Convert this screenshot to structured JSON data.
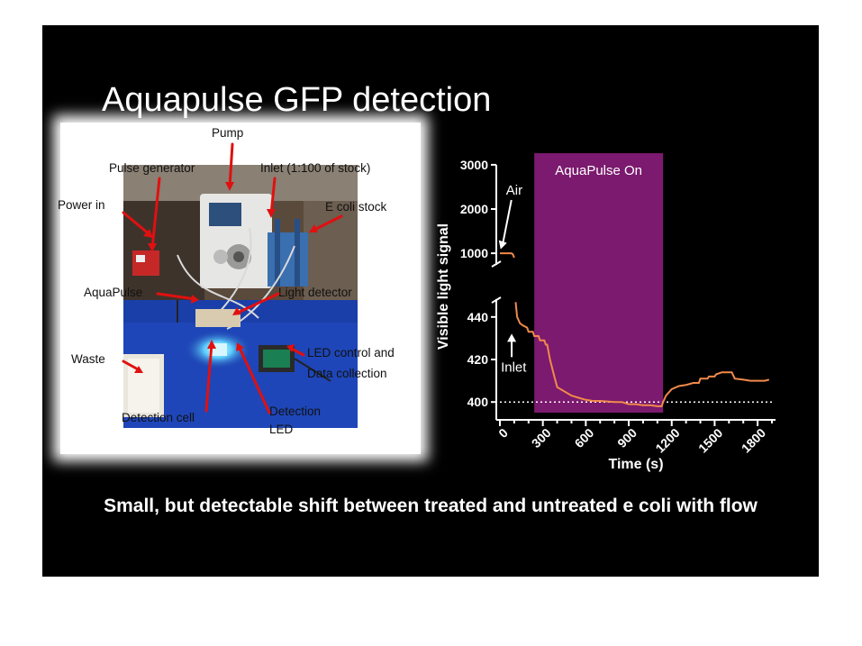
{
  "slide": {
    "title": "Aquapulse GFP detection",
    "caption": "Small, but detectable shift between treated and untreated e coli with flow"
  },
  "photo": {
    "labels": {
      "pump": "Pump",
      "pulse_generator": "Pulse generator",
      "inlet": "Inlet (1:100 of stock)",
      "power_in": "Power in",
      "e_coli_stock": "E coli stock",
      "aquapulse": "AquaPulse",
      "light_detector": "Light detector",
      "waste": "Waste",
      "led_control_1": "LED control and",
      "led_control_2": "Data collection",
      "detection_cell": "Detection cell",
      "detection_led_1": "Detection",
      "detection_led_2": "LED"
    },
    "colors": {
      "arrow": "#e01010",
      "bench": "#1a3fa8",
      "glow": "#5fd0ff"
    }
  },
  "chart_data": {
    "type": "line",
    "xlabel": "Time (s)",
    "ylabel": "Visible light signal",
    "x_ticks": [
      0,
      300,
      600,
      900,
      1200,
      1500,
      1800
    ],
    "xlim": [
      0,
      1900
    ],
    "y_axis_broken": true,
    "y_ticks_upper": [
      1000,
      2000,
      3000
    ],
    "ylim_upper": [
      900,
      3100
    ],
    "y_ticks_lower": [
      400,
      420,
      440
    ],
    "ylim_lower": [
      395,
      445
    ],
    "baseline": 400,
    "shaded_region": {
      "label": "AquaPulse On",
      "x_start": 240,
      "x_end": 1140,
      "color": "#7b1a6e"
    },
    "annotations": [
      {
        "text": "Air",
        "x": 30,
        "y": 1050
      },
      {
        "text": "Inlet",
        "x": 120,
        "y": 433
      }
    ],
    "series": [
      {
        "color": "#f08a4b",
        "upper_points": [
          [
            0,
            1000
          ],
          [
            80,
            1000
          ],
          [
            90,
            980
          ],
          [
            100,
            900
          ]
        ],
        "lower_points": [
          [
            110,
            447
          ],
          [
            120,
            440
          ],
          [
            140,
            437
          ],
          [
            160,
            436
          ],
          [
            190,
            435
          ],
          [
            200,
            433
          ],
          [
            230,
            433
          ],
          [
            240,
            431
          ],
          [
            270,
            431
          ],
          [
            280,
            429
          ],
          [
            310,
            429
          ],
          [
            320,
            427
          ],
          [
            330,
            427
          ],
          [
            350,
            420
          ],
          [
            380,
            412
          ],
          [
            400,
            407
          ],
          [
            450,
            405
          ],
          [
            500,
            403
          ],
          [
            550,
            402
          ],
          [
            600,
            401
          ],
          [
            650,
            400.5
          ],
          [
            700,
            400.5
          ],
          [
            800,
            400
          ],
          [
            850,
            400
          ],
          [
            900,
            399
          ],
          [
            950,
            399
          ],
          [
            1000,
            398.5
          ],
          [
            1050,
            398.5
          ],
          [
            1100,
            398
          ],
          [
            1130,
            398
          ],
          [
            1140,
            400
          ],
          [
            1160,
            403
          ],
          [
            1200,
            406
          ],
          [
            1250,
            407.5
          ],
          [
            1300,
            408
          ],
          [
            1350,
            409
          ],
          [
            1390,
            409
          ],
          [
            1400,
            411
          ],
          [
            1450,
            411
          ],
          [
            1460,
            412
          ],
          [
            1500,
            412
          ],
          [
            1510,
            413
          ],
          [
            1550,
            414
          ],
          [
            1600,
            414
          ],
          [
            1620,
            414
          ],
          [
            1640,
            411
          ],
          [
            1700,
            410.5
          ],
          [
            1750,
            410
          ],
          [
            1800,
            410
          ],
          [
            1850,
            410
          ],
          [
            1880,
            410.5
          ]
        ]
      }
    ]
  }
}
